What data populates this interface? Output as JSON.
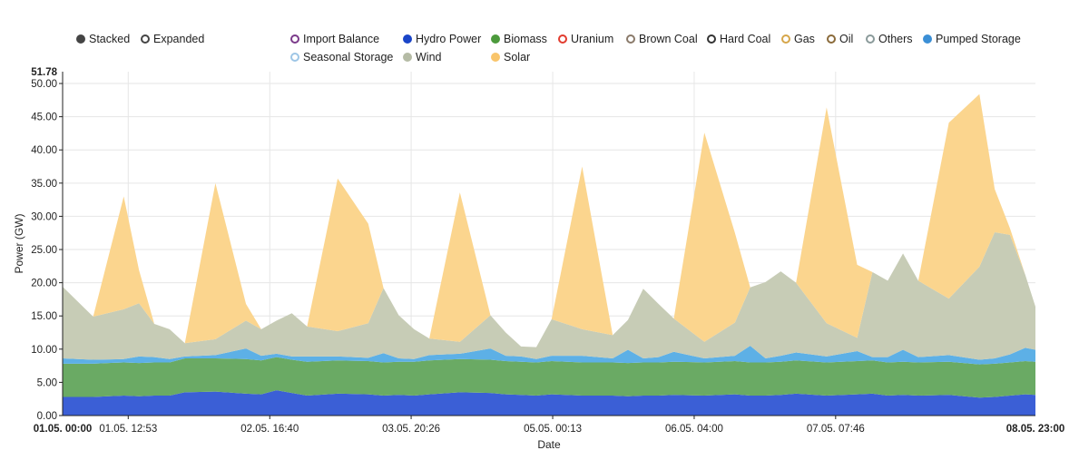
{
  "modes": [
    {
      "label": "Stacked",
      "selected": true
    },
    {
      "label": "Expanded",
      "selected": false
    }
  ],
  "legend": [
    {
      "label": "Import Balance",
      "color": "#7b3a8a",
      "filled": false
    },
    {
      "label": "Hydro Power",
      "color": "#1a45c8",
      "filled": true
    },
    {
      "label": "Biomass",
      "color": "#4c9a3c",
      "filled": true
    },
    {
      "label": "Uranium",
      "color": "#e23b2e",
      "filled": false
    },
    {
      "label": "Brown Coal",
      "color": "#8a7a6a",
      "filled": false
    },
    {
      "label": "Hard Coal",
      "color": "#333333",
      "filled": false
    },
    {
      "label": "Gas",
      "color": "#d6a64a",
      "filled": false
    },
    {
      "label": "Oil",
      "color": "#8a6a3a",
      "filled": false
    },
    {
      "label": "Others",
      "color": "#8a9a9a",
      "filled": false
    },
    {
      "label": "Pumped Storage",
      "color": "#3b8fd6",
      "filled": true
    },
    {
      "label": "Seasonal Storage",
      "color": "#9ec6e6",
      "filled": false
    },
    {
      "label": "Wind",
      "color": "#b5bba5",
      "filled": true
    },
    {
      "label": "Solar",
      "color": "#f9c56b",
      "filled": true
    }
  ],
  "chart_data": {
    "type": "area",
    "stacked": true,
    "xlabel": "Date",
    "ylabel": "Power (GW)",
    "ylim": [
      0,
      51.78
    ],
    "y_ticks": [
      "0.00",
      "5.00",
      "10.00",
      "15.00",
      "20.00",
      "25.00",
      "30.00",
      "35.00",
      "40.00",
      "45.00",
      "50.00"
    ],
    "y_max_label": "51.78",
    "x_start_label": "01.05. 00:00",
    "x_end_label": "08.05. 23:00",
    "x_tick_labels": [
      "01.05. 12:53",
      "02.05. 16:40",
      "03.05. 20:26",
      "05.05. 00:13",
      "06.05. 04:00",
      "07.05. 07:46"
    ],
    "x_tick_hours": [
      12.88,
      40.67,
      68.43,
      96.22,
      124.0,
      151.77
    ],
    "x_range_hours": [
      0,
      191
    ],
    "grid": true,
    "hours": [
      0,
      6,
      12,
      15,
      18,
      21,
      24,
      30,
      36,
      39,
      42,
      45,
      48,
      54,
      60,
      63,
      66,
      69,
      72,
      78,
      84,
      87,
      90,
      93,
      96,
      102,
      108,
      111,
      114,
      117,
      120,
      126,
      132,
      135,
      138,
      141,
      144,
      150,
      156,
      159,
      162,
      165,
      168,
      174,
      180,
      183,
      186,
      189,
      191
    ],
    "series": [
      {
        "name": "Hydro Power",
        "color": "#3b5fd6",
        "values": [
          2.8,
          2.8,
          3.0,
          2.9,
          3.0,
          3.0,
          3.5,
          3.6,
          3.3,
          3.2,
          3.8,
          3.4,
          3.0,
          3.3,
          3.2,
          3.0,
          3.1,
          3.0,
          3.2,
          3.5,
          3.4,
          3.2,
          3.1,
          3.0,
          3.2,
          3.0,
          3.0,
          2.9,
          3.0,
          3.0,
          3.1,
          3.0,
          3.2,
          3.0,
          3.0,
          3.1,
          3.3,
          3.0,
          3.2,
          3.3,
          3.0,
          3.1,
          3.0,
          3.1,
          2.7,
          2.8,
          3.0,
          3.2,
          3.1
        ]
      },
      {
        "name": "Biomass",
        "color": "#6aaa64",
        "values": [
          5.0,
          5.0,
          5.0,
          5.0,
          5.0,
          5.0,
          5.1,
          5.0,
          5.2,
          5.1,
          5.0,
          5.0,
          5.1,
          5.0,
          5.0,
          5.0,
          5.0,
          5.1,
          5.1,
          5.0,
          5.0,
          5.0,
          5.0,
          5.0,
          5.0,
          5.0,
          5.0,
          5.0,
          5.0,
          5.0,
          5.0,
          5.0,
          5.0,
          5.0,
          5.0,
          5.0,
          5.0,
          5.0,
          5.0,
          5.0,
          5.0,
          5.0,
          5.0,
          5.0,
          5.0,
          5.0,
          5.0,
          5.0,
          5.0
        ]
      },
      {
        "name": "Pumped Storage",
        "color": "#5db0e6",
        "values": [
          0.8,
          0.6,
          0.5,
          1.0,
          0.8,
          0.5,
          0.3,
          0.5,
          1.6,
          0.7,
          0.5,
          0.5,
          0.8,
          0.6,
          0.5,
          1.4,
          0.5,
          0.4,
          0.8,
          0.8,
          1.7,
          0.8,
          0.8,
          0.5,
          0.8,
          1.0,
          0.6,
          2.0,
          0.6,
          0.8,
          1.5,
          0.6,
          0.8,
          2.5,
          0.6,
          0.9,
          1.2,
          0.9,
          1.5,
          0.5,
          0.8,
          1.8,
          0.8,
          1.0,
          0.7,
          0.8,
          1.2,
          2.0,
          1.8
        ]
      },
      {
        "name": "Wind",
        "color": "#c7ccb6",
        "values": [
          10.8,
          6.5,
          7.5,
          8.0,
          5.0,
          4.5,
          2.0,
          2.4,
          4.2,
          4.0,
          5.0,
          6.5,
          4.5,
          3.8,
          5.2,
          9.8,
          6.5,
          4.5,
          2.5,
          1.8,
          5.0,
          3.5,
          1.5,
          1.8,
          5.5,
          4.0,
          3.5,
          4.5,
          10.5,
          8.0,
          5.0,
          2.5,
          5.0,
          8.8,
          11.5,
          12.7,
          10.5,
          5.0,
          2.0,
          12.8,
          11.5,
          14.5,
          11.5,
          8.5,
          14.0,
          19.0,
          18.0,
          11.0,
          6.5
        ]
      },
      {
        "name": "Solar",
        "color": "#fbd58e",
        "values": [
          0,
          0,
          17.0,
          5.0,
          0,
          0,
          0,
          23.5,
          2.5,
          0,
          0,
          0,
          0,
          23.0,
          15.0,
          0,
          0,
          0,
          0,
          22.5,
          0,
          0,
          0,
          0,
          0,
          24.5,
          0,
          0,
          0,
          0,
          0,
          31.5,
          13.5,
          0,
          0,
          0,
          0,
          32.5,
          11.0,
          0,
          0,
          0,
          0,
          26.5,
          26.0,
          6.5,
          1.0,
          0,
          0
        ]
      }
    ]
  }
}
